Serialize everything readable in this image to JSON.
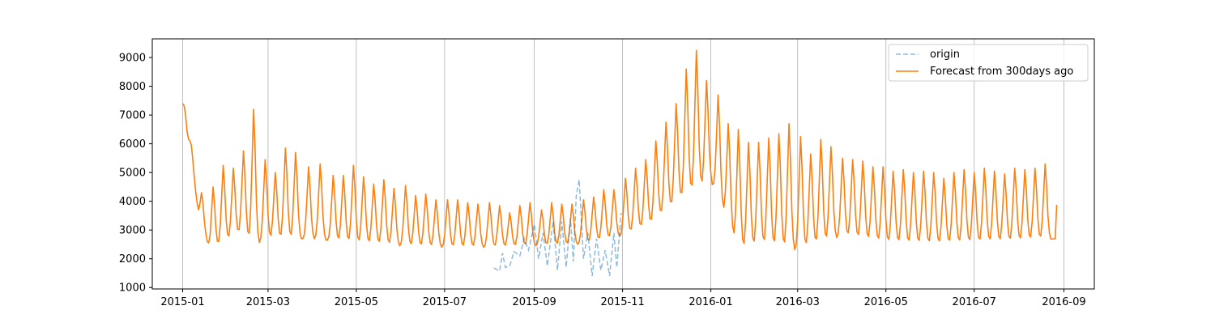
{
  "chart_data": {
    "type": "line",
    "title": "",
    "xlabel": "",
    "ylabel": "",
    "grid": "vertical-only",
    "legend_position": "upper-right",
    "x_range": [
      "2014-12-11",
      "2016-09-22"
    ],
    "y_range": [
      950,
      9650
    ],
    "x_ticks": [
      "2015-01",
      "2015-03",
      "2015-05",
      "2015-07",
      "2015-09",
      "2015-11",
      "2016-01",
      "2016-03",
      "2016-05",
      "2016-07",
      "2016-09"
    ],
    "y_ticks": [
      "1000",
      "2000",
      "3000",
      "4000",
      "5000",
      "6000",
      "7000",
      "8000",
      "9000"
    ],
    "series": [
      {
        "name": "origin",
        "color": "#1f77b4",
        "style": "dashed",
        "x_start": "2015-08-04",
        "x_end": "2015-10-31",
        "points": [
          [
            "2015-08-04",
            1680
          ],
          [
            "2015-08-08",
            1580
          ],
          [
            "2015-08-10",
            2200
          ],
          [
            "2015-08-12",
            1700
          ],
          [
            "2015-08-15",
            1750
          ],
          [
            "2015-08-18",
            2250
          ],
          [
            "2015-08-22",
            2100
          ],
          [
            "2015-08-25",
            2700
          ],
          [
            "2015-08-28",
            2300
          ],
          [
            "2015-09-01",
            3200
          ],
          [
            "2015-09-04",
            2000
          ],
          [
            "2015-09-07",
            2900
          ],
          [
            "2015-09-10",
            1750
          ],
          [
            "2015-09-14",
            3300
          ],
          [
            "2015-09-17",
            1600
          ],
          [
            "2015-09-20",
            3300
          ],
          [
            "2015-09-23",
            1700
          ],
          [
            "2015-09-26",
            3400
          ],
          [
            "2015-09-28",
            1900
          ],
          [
            "2015-09-30",
            4200
          ],
          [
            "2015-10-02",
            4750
          ],
          [
            "2015-10-05",
            2000
          ],
          [
            "2015-10-08",
            2900
          ],
          [
            "2015-10-11",
            1400
          ],
          [
            "2015-10-14",
            2700
          ],
          [
            "2015-10-17",
            1600
          ],
          [
            "2015-10-20",
            2300
          ],
          [
            "2015-10-23",
            1400
          ],
          [
            "2015-10-26",
            2900
          ],
          [
            "2015-10-28",
            1700
          ],
          [
            "2015-10-31",
            3600
          ]
        ]
      },
      {
        "name": "Forecast from 300days ago",
        "color": "#ff7f0e",
        "style": "solid",
        "x_start": "2015-01-01",
        "x_end": "2016-08-27",
        "anchors": [
          [
            "2015-01-01",
            7400
          ],
          [
            "2015-01-06",
            6000
          ],
          [
            "2015-01-12",
            3500
          ],
          [
            "2015-01-20",
            2300
          ],
          [
            "2015-02-10",
            2900
          ],
          [
            "2015-02-20",
            2500
          ],
          [
            "2015-03-01",
            2700
          ],
          [
            "2015-04-01",
            2700
          ],
          [
            "2015-05-01",
            2550
          ],
          [
            "2015-06-01",
            2450
          ],
          [
            "2015-07-01",
            2400
          ],
          [
            "2015-08-01",
            2400
          ],
          [
            "2015-09-01",
            2450
          ],
          [
            "2015-10-01",
            2500
          ],
          [
            "2015-11-01",
            2800
          ],
          [
            "2015-11-20",
            3200
          ],
          [
            "2015-12-15",
            4200
          ],
          [
            "2016-01-01",
            4700
          ],
          [
            "2016-01-12",
            3400
          ],
          [
            "2016-01-20",
            2300
          ],
          [
            "2016-02-05",
            2500
          ],
          [
            "2016-03-01",
            2300
          ],
          [
            "2016-04-01",
            2800
          ],
          [
            "2016-05-01",
            2550
          ],
          [
            "2016-06-01",
            2500
          ],
          [
            "2016-07-01",
            2550
          ],
          [
            "2016-08-01",
            2600
          ],
          [
            "2016-08-27",
            2700
          ]
        ],
        "weekly_peaks": [
          [
            "2015-01-01",
            7400
          ],
          [
            "2015-01-06",
            6100
          ],
          [
            "2015-01-14",
            4300
          ],
          [
            "2015-01-22",
            4500
          ],
          [
            "2015-01-29",
            5250
          ],
          [
            "2015-02-05",
            5150
          ],
          [
            "2015-02-12",
            5750
          ],
          [
            "2015-02-19",
            7200
          ],
          [
            "2015-02-27",
            5450
          ],
          [
            "2015-03-06",
            5000
          ],
          [
            "2015-03-13",
            5850
          ],
          [
            "2015-03-20",
            5700
          ],
          [
            "2015-03-29",
            5200
          ],
          [
            "2015-04-06",
            5300
          ],
          [
            "2015-04-15",
            4900
          ],
          [
            "2015-04-22",
            4900
          ],
          [
            "2015-04-29",
            5250
          ],
          [
            "2015-05-06",
            4850
          ],
          [
            "2015-05-13",
            4600
          ],
          [
            "2015-05-20",
            4750
          ],
          [
            "2015-05-27",
            4450
          ],
          [
            "2015-06-04",
            4550
          ],
          [
            "2015-06-11",
            4200
          ],
          [
            "2015-06-18",
            4250
          ],
          [
            "2015-06-25",
            4050
          ],
          [
            "2015-07-03",
            4050
          ],
          [
            "2015-07-10",
            4050
          ],
          [
            "2015-07-17",
            3950
          ],
          [
            "2015-07-24",
            3900
          ],
          [
            "2015-08-01",
            3950
          ],
          [
            "2015-08-08",
            3850
          ],
          [
            "2015-08-15",
            3600
          ],
          [
            "2015-08-22",
            3850
          ],
          [
            "2015-08-29",
            3950
          ],
          [
            "2015-09-06",
            3700
          ],
          [
            "2015-09-13",
            3950
          ],
          [
            "2015-09-20",
            3900
          ],
          [
            "2015-09-27",
            3900
          ],
          [
            "2015-10-05",
            4050
          ],
          [
            "2015-10-12",
            4150
          ],
          [
            "2015-10-19",
            4400
          ],
          [
            "2015-10-26",
            4400
          ],
          [
            "2015-11-03",
            4800
          ],
          [
            "2015-11-10",
            5150
          ],
          [
            "2015-11-17",
            5450
          ],
          [
            "2015-11-24",
            6100
          ],
          [
            "2015-12-01",
            6750
          ],
          [
            "2015-12-08",
            7400
          ],
          [
            "2015-12-15",
            8600
          ],
          [
            "2015-12-22",
            9250
          ],
          [
            "2015-12-29",
            8200
          ],
          [
            "2016-01-06",
            7700
          ],
          [
            "2016-01-13",
            6700
          ],
          [
            "2016-01-20",
            6500
          ],
          [
            "2016-01-27",
            6050
          ],
          [
            "2016-02-03",
            6050
          ],
          [
            "2016-02-10",
            6200
          ],
          [
            "2016-02-17",
            6350
          ],
          [
            "2016-02-24",
            6700
          ],
          [
            "2016-03-03",
            6250
          ],
          [
            "2016-03-10",
            5650
          ],
          [
            "2016-03-17",
            6150
          ],
          [
            "2016-03-24",
            5900
          ],
          [
            "2016-04-01",
            5500
          ],
          [
            "2016-04-08",
            5450
          ],
          [
            "2016-04-15",
            5400
          ],
          [
            "2016-04-22",
            5200
          ],
          [
            "2016-04-29",
            5200
          ],
          [
            "2016-05-06",
            5050
          ],
          [
            "2016-05-13",
            5100
          ],
          [
            "2016-05-20",
            5000
          ],
          [
            "2016-05-27",
            5050
          ],
          [
            "2016-06-03",
            5000
          ],
          [
            "2016-06-10",
            4800
          ],
          [
            "2016-06-17",
            5000
          ],
          [
            "2016-06-24",
            5100
          ],
          [
            "2016-07-01",
            5000
          ],
          [
            "2016-07-08",
            5150
          ],
          [
            "2016-07-15",
            5050
          ],
          [
            "2016-07-22",
            4950
          ],
          [
            "2016-07-29",
            5150
          ],
          [
            "2016-08-05",
            5100
          ],
          [
            "2016-08-12",
            5150
          ],
          [
            "2016-08-19",
            5300
          ]
        ],
        "end_value": 3880
      }
    ]
  }
}
